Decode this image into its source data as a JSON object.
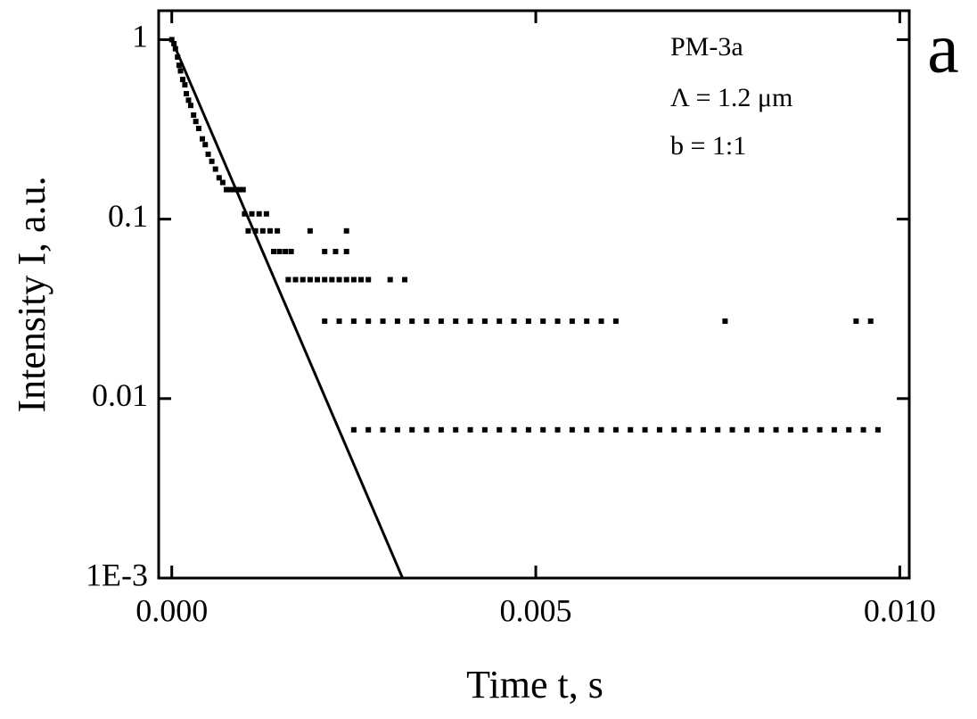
{
  "chart_data": {
    "type": "scatter",
    "log_y": true,
    "xlabel": "Time t, s",
    "ylabel": "Intensity I, a.u.",
    "annotations": [
      "PM-3a",
      "Λ = 1.2 μm",
      "b = 1:1",
      "a"
    ],
    "xlim": [
      -0.00018,
      0.01013
    ],
    "ylim": [
      0.001,
      1.45
    ],
    "xticks": [
      {
        "value": 0,
        "label": "0.000"
      },
      {
        "value": 0.005,
        "label": "0.005"
      },
      {
        "value": 0.01,
        "label": "0.010"
      }
    ],
    "yticks": [
      1,
      0.1,
      0.01,
      {
        "value": 0.001,
        "label": "1E-3"
      }
    ],
    "series": [
      {
        "type": "scatter",
        "color": "#000000",
        "x": [
          0,
          3e-05,
          5e-05,
          8e-05,
          0.0001,
          0.00012,
          0.00015,
          0.00018,
          0.0002,
          0.00023,
          0.00026,
          0.0003,
          0.00033,
          0.00037,
          0.00042,
          0.00046,
          0.0005,
          0.00055,
          0.0006,
          0.00065,
          0.0007,
          0.00075,
          0.0008,
          0.00086,
          0.00092,
          0.00098,
          0.001,
          0.0011,
          0.0012,
          0.0013,
          0.00105,
          0.00115,
          0.00125,
          0.00135,
          0.00145,
          0.0019,
          0.0024,
          0.0014,
          0.00148,
          0.00156,
          0.00164,
          0.0021,
          0.00225,
          0.0024,
          0.0016,
          0.0017,
          0.0018,
          0.0019,
          0.002,
          0.0021,
          0.0022,
          0.0023,
          0.0024,
          0.0025,
          0.0026,
          0.0027,
          0.003,
          0.0032,
          0.0021,
          0.0023,
          0.0025,
          0.0027,
          0.0029,
          0.0031,
          0.0033,
          0.0035,
          0.0037,
          0.0039,
          0.0041,
          0.0043,
          0.0045,
          0.0047,
          0.0049,
          0.0051,
          0.0053,
          0.0055,
          0.0057,
          0.0059,
          0.0061,
          0.0076,
          0.0094,
          0.0096,
          0.0025,
          0.0027,
          0.0029,
          0.0031,
          0.0033,
          0.0035,
          0.0037,
          0.0039,
          0.0041,
          0.0043,
          0.0045,
          0.0047,
          0.0049,
          0.0051,
          0.0053,
          0.0055,
          0.0057,
          0.0059,
          0.0061,
          0.0063,
          0.0065,
          0.0067,
          0.0069,
          0.0071,
          0.0073,
          0.0075,
          0.0077,
          0.0079,
          0.0081,
          0.0083,
          0.0085,
          0.0087,
          0.0089,
          0.0091,
          0.0093,
          0.0095,
          0.0097
        ],
        "values": [
          1,
          0.95,
          0.89,
          0.8,
          0.72,
          0.67,
          0.6,
          0.56,
          0.5,
          0.46,
          0.43,
          0.38,
          0.35,
          0.32,
          0.28,
          0.26,
          0.23,
          0.21,
          0.19,
          0.17,
          0.16,
          0.146,
          0.146,
          0.146,
          0.146,
          0.146,
          0.107,
          0.107,
          0.107,
          0.107,
          0.086,
          0.086,
          0.086,
          0.086,
          0.086,
          0.086,
          0.086,
          0.066,
          0.066,
          0.066,
          0.066,
          0.066,
          0.066,
          0.066,
          0.046,
          0.046,
          0.046,
          0.046,
          0.046,
          0.046,
          0.046,
          0.046,
          0.046,
          0.046,
          0.046,
          0.046,
          0.046,
          0.046,
          0.027,
          0.027,
          0.027,
          0.027,
          0.027,
          0.027,
          0.027,
          0.027,
          0.027,
          0.027,
          0.027,
          0.027,
          0.027,
          0.027,
          0.027,
          0.027,
          0.027,
          0.027,
          0.027,
          0.027,
          0.027,
          0.027,
          0.027,
          0.027,
          0.0067,
          0.0067,
          0.0067,
          0.0067,
          0.0067,
          0.0067,
          0.0067,
          0.0067,
          0.0067,
          0.0067,
          0.0067,
          0.0067,
          0.0067,
          0.0067,
          0.0067,
          0.0067,
          0.0067,
          0.0067,
          0.0067,
          0.0067,
          0.0067,
          0.0067,
          0.0067,
          0.0067,
          0.0067,
          0.0067,
          0.0067,
          0.0067,
          0.0067,
          0.0067,
          0.0067,
          0.0067,
          0.0067,
          0.0067,
          0.0067,
          0.0067,
          0.0067
        ]
      },
      {
        "type": "line",
        "color": "#000000",
        "x": [
          0,
          0.00317
        ],
        "values": [
          1,
          0.001
        ]
      }
    ]
  }
}
